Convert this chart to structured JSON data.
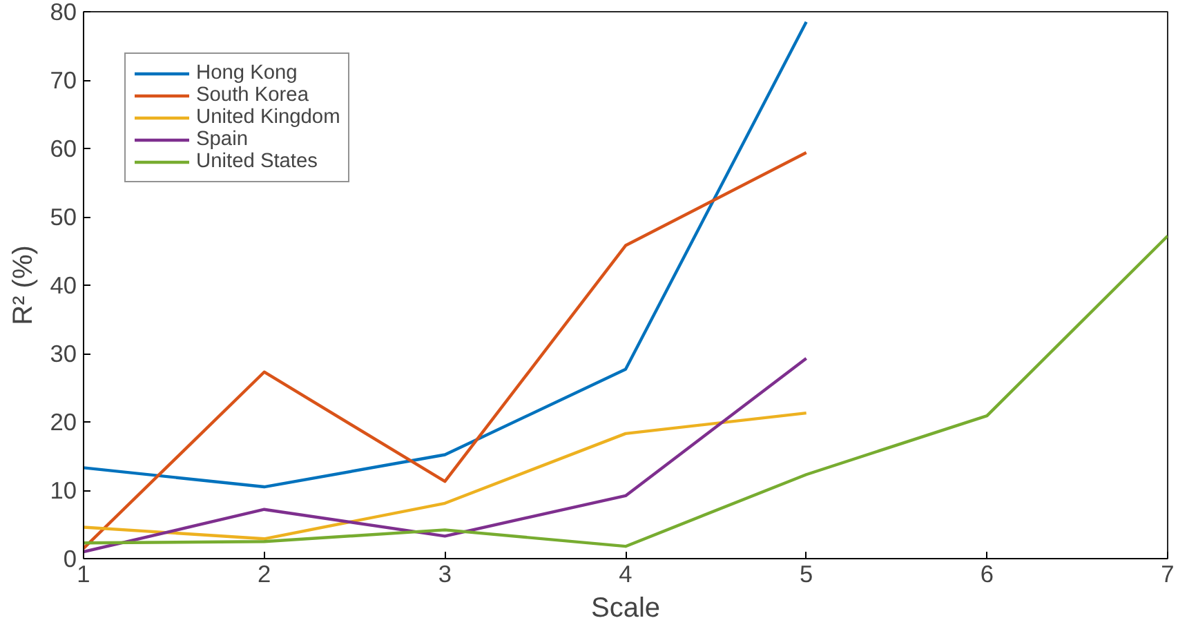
{
  "chart_data": {
    "type": "line",
    "xlabel": "Scale",
    "ylabel": "R² (%)",
    "x": [
      1,
      2,
      3,
      4,
      5,
      6,
      7
    ],
    "xlim": [
      1,
      7
    ],
    "xticks": [
      1,
      2,
      3,
      4,
      5,
      6,
      7
    ],
    "ylim": [
      0,
      80
    ],
    "yticks": [
      0,
      10,
      20,
      30,
      40,
      50,
      60,
      70,
      80
    ],
    "grid": false,
    "legend": "top left",
    "marker": "none",
    "line_style": "solid",
    "series": [
      {
        "name": "Hong Kong",
        "color": "#0072bd",
        "values": [
          13.3,
          10.5,
          15.2,
          27.7,
          78.5,
          null,
          null
        ]
      },
      {
        "name": "South Korea",
        "color": "#d95319",
        "values": [
          1.5,
          27.3,
          11.3,
          45.8,
          59.4,
          null,
          null
        ]
      },
      {
        "name": "United Kingdom",
        "color": "#edb120",
        "values": [
          4.6,
          2.9,
          8.1,
          18.3,
          21.3,
          null,
          null
        ]
      },
      {
        "name": "Spain",
        "color": "#7e2f8e",
        "values": [
          1.0,
          7.2,
          3.3,
          9.2,
          29.3,
          null,
          null
        ]
      },
      {
        "name": "United States",
        "color": "#77ac30",
        "values": [
          2.3,
          2.5,
          4.2,
          1.8,
          12.3,
          20.9,
          47.2
        ]
      }
    ]
  }
}
